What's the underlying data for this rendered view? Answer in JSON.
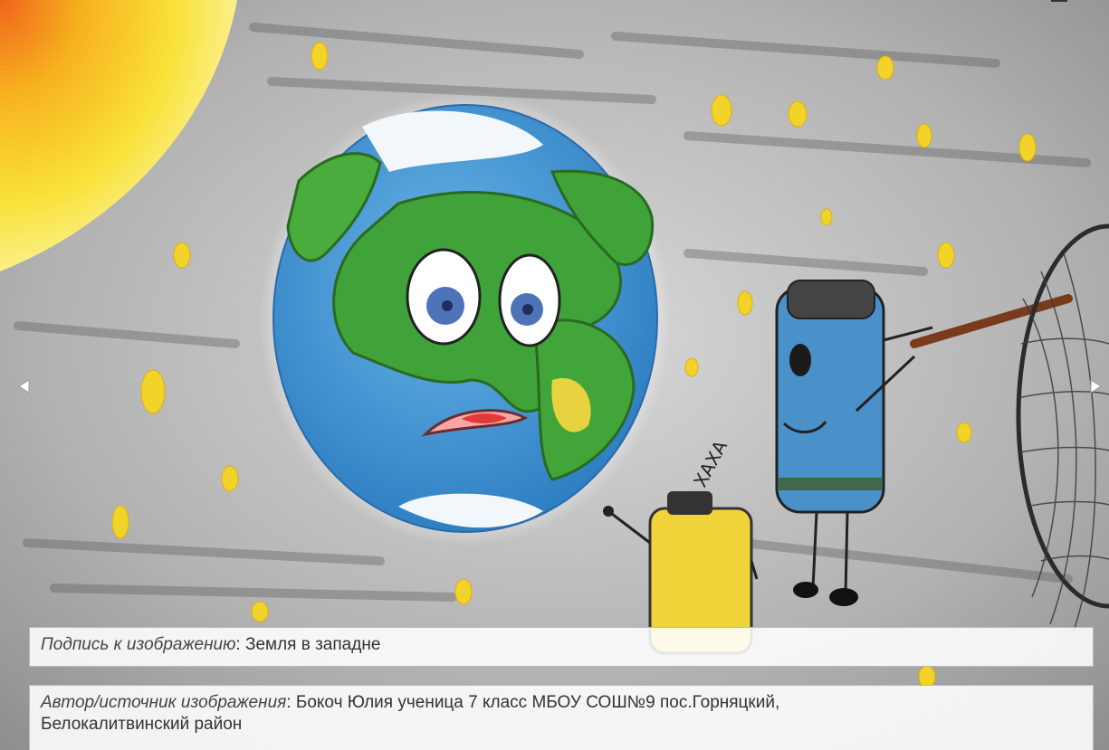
{
  "viewer": {
    "caption_label": "Подпись к изображению",
    "caption_sep": ":",
    "caption_text": "Земля в западне",
    "author_label": "Автор/источник изображения",
    "author_sep": ":",
    "author_line1": "Бокоч Юлия ученица 7 класс МБОУ СОШ№9 пос.Горняцкий,",
    "author_line2": "Белокалитвинский район"
  },
  "artwork": {
    "hand_lettering": "ХАХА",
    "colors": {
      "space_background": "#a9a9a9",
      "sun": "#f7d21a",
      "ocean": "#4d9fd6",
      "land": "#3fa33a",
      "yellow_battery": "#f0d43a",
      "blue_battery": "#4a90c9"
    }
  },
  "icons": {
    "prev": "chevron-left-icon",
    "next": "chevron-right-icon"
  }
}
